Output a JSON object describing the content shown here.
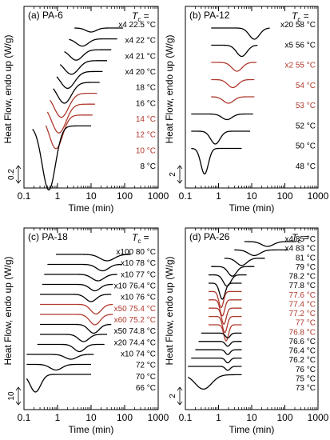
{
  "figure": {
    "ylabel": "Heat Flow, endo up (W/g)",
    "xlabel": "Time (min)",
    "scale_arrow_glyph": "⇕"
  },
  "chart_data": [
    {
      "type": "line",
      "panel": "(a)",
      "title": "PA-6",
      "tc_header": "T",
      "tc_sub": "c",
      "tc_eq": " =",
      "xlabel": "Time (min)",
      "ylabel": "Heat Flow, endo up (W/g)",
      "xscale": "log",
      "xlim": [
        0.1,
        1000
      ],
      "xticks": [
        "0.1",
        "1",
        "10",
        "100",
        "1000"
      ],
      "scale_bar": "0.2",
      "series": [
        {
          "name": "22.5 °C",
          "mult": "x4",
          "color": "#000000",
          "tmin": 3.2,
          "tmax": 90,
          "peak": 10,
          "width": 0.22,
          "depth": 5
        },
        {
          "name": "22 °C",
          "mult": "x4",
          "color": "#000000",
          "tmin": 2.2,
          "tmax": 60,
          "peak": 5.5,
          "width": 0.25,
          "depth": 9
        },
        {
          "name": "21 °C",
          "mult": "x4",
          "color": "#000000",
          "tmin": 1.6,
          "tmax": 40,
          "peak": 3.6,
          "width": 0.27,
          "depth": 13
        },
        {
          "name": "20 °C",
          "mult": "x4",
          "color": "#000000",
          "tmin": 1.2,
          "tmax": 30,
          "peak": 2.6,
          "width": 0.3,
          "depth": 17
        },
        {
          "name": "18 °C",
          "mult": "",
          "color": "#000000",
          "tmin": 0.95,
          "tmax": 22,
          "peak": 2.0,
          "width": 0.3,
          "depth": 21
        },
        {
          "name": "16 °C",
          "mult": "",
          "color": "#000000",
          "tmin": 0.75,
          "tmax": 18,
          "peak": 1.6,
          "width": 0.3,
          "depth": 26
        },
        {
          "name": "14 °C",
          "mult": "",
          "color": "#b03a2e",
          "tmin": 0.6,
          "tmax": 15,
          "peak": 1.3,
          "width": 0.3,
          "depth": 30
        },
        {
          "name": "12 °C",
          "mult": "",
          "color": "#b03a2e",
          "tmin": 0.5,
          "tmax": 13,
          "peak": 1.1,
          "width": 0.3,
          "depth": 36
        },
        {
          "name": "10 °C",
          "mult": "",
          "color": "#b03a2e",
          "tmin": 0.45,
          "tmax": 11,
          "peak": 0.9,
          "width": 0.28,
          "depth": 42
        },
        {
          "name": "8 °C",
          "mult": "",
          "color": "#000000",
          "tmin": 0.18,
          "tmax": 10,
          "peak": 0.55,
          "width": 0.28,
          "depth": 80
        }
      ]
    },
    {
      "type": "line",
      "panel": "(b)",
      "title": "PA-12",
      "tc_header": "T",
      "tc_sub": "c",
      "tc_eq": " =",
      "xlabel": "Time (min)",
      "ylabel": "Heat Flow, endo up (W/g)",
      "xscale": "log",
      "xlim": [
        0.1,
        1000
      ],
      "xticks": [
        "0.1",
        "1",
        "10",
        "100",
        "1000"
      ],
      "scale_bar": "2",
      "series": [
        {
          "name": "58 °C",
          "mult": "x20",
          "color": "#000000",
          "tmin": 0.6,
          "tmax": 35,
          "peak": 12,
          "width": 0.22,
          "depth": 14
        },
        {
          "name": "56 °C",
          "mult": "x5",
          "color": "#000000",
          "tmin": 0.6,
          "tmax": 15,
          "peak": 5,
          "width": 0.22,
          "depth": 14
        },
        {
          "name": "55 °C",
          "mult": "x2",
          "color": "#b03a2e",
          "tmin": 0.6,
          "tmax": 14,
          "peak": 3.6,
          "width": 0.22,
          "depth": 11
        },
        {
          "name": "54 °C",
          "mult": "",
          "color": "#b03a2e",
          "tmin": 0.6,
          "tmax": 12,
          "peak": 2.7,
          "width": 0.22,
          "depth": 10
        },
        {
          "name": "53 °C",
          "mult": "",
          "color": "#b03a2e",
          "tmin": 0.6,
          "tmax": 12,
          "peak": 2.0,
          "width": 0.22,
          "depth": 8
        },
        {
          "name": "52 °C",
          "mult": "",
          "color": "#000000",
          "tmin": 0.15,
          "tmax": 11,
          "peak": 1.8,
          "width": 0.22,
          "depth": 7
        },
        {
          "name": "50 °C",
          "mult": "",
          "color": "#000000",
          "tmin": 0.15,
          "tmax": 9,
          "peak": 0.8,
          "width": 0.2,
          "depth": 16
        },
        {
          "name": "48 °C",
          "mult": "",
          "color": "#000000",
          "tmin": 0.15,
          "tmax": 5,
          "peak": 0.38,
          "width": 0.16,
          "depth": 32
        }
      ]
    },
    {
      "type": "line",
      "panel": "(c)",
      "title": "PA-18",
      "tc_header": "T",
      "tc_sub": "c",
      "tc_eq": " =",
      "xlabel": "Time (min)",
      "ylabel": "Heat Flow, endo up (W/g)",
      "xscale": "log",
      "xlim": [
        0.1,
        1000
      ],
      "xticks": [
        "0.1",
        "1",
        "10",
        "100",
        "1000"
      ],
      "scale_bar": "10",
      "series": [
        {
          "name": "80 °C",
          "mult": "x100",
          "color": "#000000",
          "tmin": 0.9,
          "tmax": 150,
          "peak": 30,
          "width": 0.3,
          "depth": 8
        },
        {
          "name": "78 °C",
          "mult": "x10",
          "color": "#000000",
          "tmin": 0.5,
          "tmax": 80,
          "peak": 22,
          "width": 0.25,
          "depth": 8
        },
        {
          "name": "77 °C",
          "mult": "x10",
          "color": "#000000",
          "tmin": 0.4,
          "tmax": 60,
          "peak": 16,
          "width": 0.25,
          "depth": 8
        },
        {
          "name": "76.4 °C",
          "mult": "x10",
          "color": "#000000",
          "tmin": 0.35,
          "tmax": 45,
          "peak": 13,
          "width": 0.22,
          "depth": 8
        },
        {
          "name": "76 °C",
          "mult": "x10",
          "color": "#000000",
          "tmin": 0.3,
          "tmax": 40,
          "peak": 10,
          "width": 0.22,
          "depth": 9
        },
        {
          "name": "75.4 °C",
          "mult": "x50",
          "color": "#b03a2e",
          "tmin": 0.3,
          "tmax": 45,
          "peak": 14,
          "width": 0.22,
          "depth": 12
        },
        {
          "name": "75.2 °C",
          "mult": "x60",
          "color": "#b03a2e",
          "tmin": 0.3,
          "tmax": 45,
          "peak": 13,
          "width": 0.22,
          "depth": 13
        },
        {
          "name": "74.8 °C",
          "mult": "x50",
          "color": "#000000",
          "tmin": 0.3,
          "tmax": 40,
          "peak": 12,
          "width": 0.22,
          "depth": 11
        },
        {
          "name": "74.4 °C",
          "mult": "x20",
          "color": "#000000",
          "tmin": 0.3,
          "tmax": 30,
          "peak": 6,
          "width": 0.22,
          "depth": 9
        },
        {
          "name": "74 °C",
          "mult": "x10",
          "color": "#000000",
          "tmin": 0.25,
          "tmax": 25,
          "peak": 4.5,
          "width": 0.22,
          "depth": 9
        },
        {
          "name": "72 °C",
          "mult": "",
          "color": "#000000",
          "tmin": 0.12,
          "tmax": 12,
          "peak": 2.5,
          "width": 0.25,
          "depth": 6
        },
        {
          "name": "70 °C",
          "mult": "",
          "color": "#000000",
          "tmin": 0.12,
          "tmax": 10,
          "peak": 0.9,
          "width": 0.25,
          "depth": 7
        },
        {
          "name": "66 °C",
          "mult": "",
          "color": "#000000",
          "tmin": 0.12,
          "tmax": 10,
          "peak": 0.22,
          "width": 0.22,
          "depth": 22
        }
      ]
    },
    {
      "type": "line",
      "panel": "(d)",
      "title": "PA-26",
      "tc_header": "T",
      "tc_sub": "c",
      "tc_eq": " =",
      "xlabel": "Time (min)",
      "ylabel": "Heat Flow, endo up (W/g)",
      "xscale": "log",
      "xlim": [
        0.1,
        1000
      ],
      "xticks": [
        "0.1",
        "1",
        "10",
        "100",
        "1000"
      ],
      "scale_bar": "2",
      "series": [
        {
          "name": "85 °C",
          "mult": "x4",
          "color": "#000000",
          "tmin": 6,
          "tmax": 220,
          "peak": 30,
          "width": 0.25,
          "depth": 6
        },
        {
          "name": "83 °C",
          "mult": "x4",
          "color": "#000000",
          "tmin": 3,
          "tmax": 120,
          "peak": 12,
          "width": 0.25,
          "depth": 7
        },
        {
          "name": "81 °C",
          "mult": "",
          "color": "#000000",
          "tmin": 1.5,
          "tmax": 25,
          "peak": 5,
          "width": 0.22,
          "depth": 9
        },
        {
          "name": "79 °C",
          "mult": "",
          "color": "#000000",
          "tmin": 0.6,
          "tmax": 12,
          "peak": 2.6,
          "width": 0.18,
          "depth": 12
        },
        {
          "name": "78.2 °C",
          "mult": "",
          "color": "#000000",
          "tmin": 0.5,
          "tmax": 7,
          "peak": 1.8,
          "width": 0.16,
          "depth": 14
        },
        {
          "name": "77.8 °C",
          "mult": "",
          "color": "#000000",
          "tmin": 0.5,
          "tmax": 5,
          "peak": 1.3,
          "width": 0.12,
          "depth": 20
        },
        {
          "name": "77.6 °C",
          "mult": "",
          "color": "#b03a2e",
          "tmin": 0.5,
          "tmax": 5,
          "peak": 1.2,
          "width": 0.1,
          "depth": 20
        },
        {
          "name": "77.4 °C",
          "mult": "",
          "color": "#b03a2e",
          "tmin": 0.5,
          "tmax": 5,
          "peak": 1.3,
          "width": 0.1,
          "depth": 20
        },
        {
          "name": "77.2 °C",
          "mult": "",
          "color": "#b03a2e",
          "tmin": 0.5,
          "tmax": 5,
          "peak": 1.45,
          "width": 0.1,
          "depth": 20
        },
        {
          "name": "77 °C",
          "mult": "",
          "color": "#b03a2e",
          "tmin": 0.5,
          "tmax": 5,
          "peak": 1.55,
          "width": 0.1,
          "depth": 20
        },
        {
          "name": "76.8 °C",
          "mult": "",
          "color": "#b03a2e",
          "tmin": 0.5,
          "tmax": 5,
          "peak": 1.7,
          "width": 0.1,
          "depth": 20
        },
        {
          "name": "76.6 °C",
          "mult": "",
          "color": "#000000",
          "tmin": 0.3,
          "tmax": 5,
          "peak": 1.9,
          "width": 0.1,
          "depth": 6
        },
        {
          "name": "76.4 °C",
          "mult": "",
          "color": "#000000",
          "tmin": 0.25,
          "tmax": 5,
          "peak": 1.9,
          "width": 0.1,
          "depth": 6
        },
        {
          "name": "76.2 °C",
          "mult": "",
          "color": "#000000",
          "tmin": 0.2,
          "tmax": 5,
          "peak": 1.9,
          "width": 0.1,
          "depth": 6
        },
        {
          "name": "76 °C",
          "mult": "",
          "color": "#000000",
          "tmin": 0.15,
          "tmax": 5,
          "peak": 1.9,
          "width": 0.1,
          "depth": 6
        },
        {
          "name": "75 °C",
          "mult": "",
          "color": "#000000",
          "tmin": 0.12,
          "tmax": 5,
          "peak": 1.9,
          "width": 0.1,
          "depth": 5
        },
        {
          "name": "73 °C",
          "mult": "",
          "color": "#000000",
          "tmin": 0.12,
          "tmax": 5,
          "peak": 0.35,
          "width": 0.35,
          "depth": 18
        }
      ]
    }
  ]
}
